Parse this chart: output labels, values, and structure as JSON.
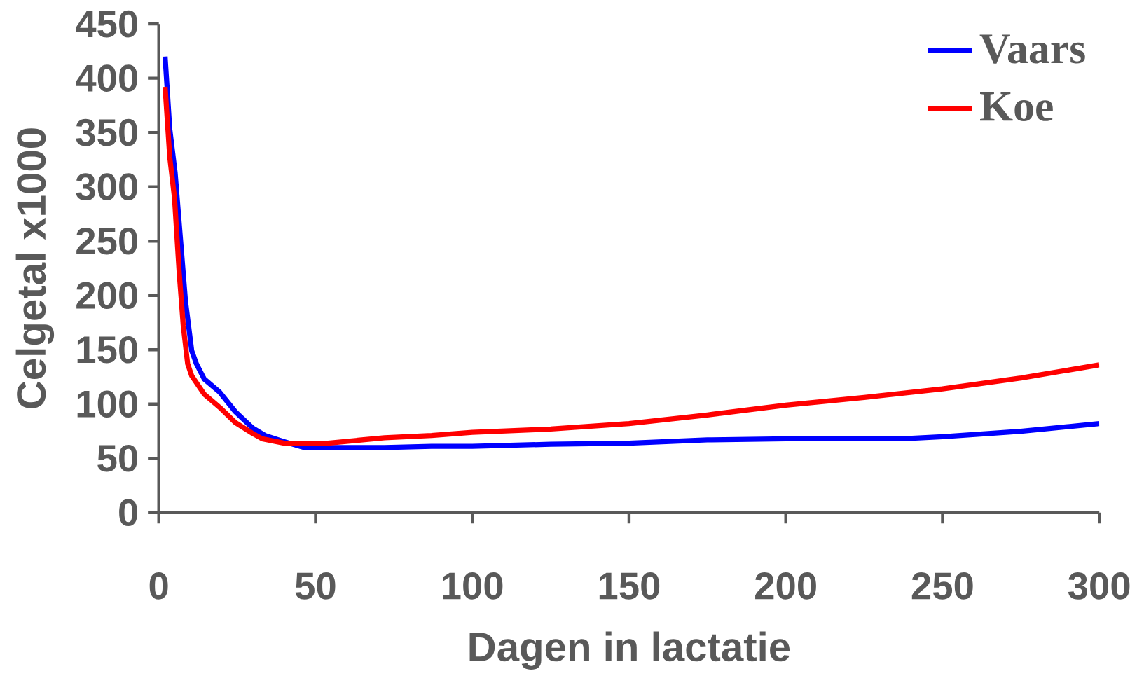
{
  "chart_data": {
    "type": "line",
    "xlabel": "Dagen in lactatie",
    "ylabel": "Celgetal  x1000",
    "xlim": [
      0,
      300
    ],
    "ylim": [
      0,
      450
    ],
    "xticks": [
      0,
      50,
      100,
      150,
      200,
      250,
      300
    ],
    "yticks": [
      0,
      50,
      100,
      150,
      200,
      250,
      300,
      350,
      400,
      450
    ],
    "grid": false,
    "legend": "top right",
    "marker": "none",
    "line_style": "solid",
    "series": [
      {
        "name": "Vaars",
        "color": "#0000ff",
        "x": [
          2,
          3.5,
          5.2,
          8.5,
          9.5,
          10.5,
          12,
          14.5,
          19.4,
          24.4,
          29.9,
          33.9,
          39.8,
          46.3,
          72,
          87,
          100,
          125,
          150,
          175,
          200,
          237,
          250,
          275,
          300
        ],
        "values": [
          420,
          353,
          313,
          195,
          172,
          149,
          137,
          123,
          111,
          93,
          78,
          71,
          65.5,
          60,
          60,
          61,
          61,
          63,
          64,
          67,
          68,
          68,
          70,
          75,
          82
        ]
      },
      {
        "name": "Koe",
        "color": "#ff0000",
        "x": [
          2,
          3.5,
          5,
          6.5,
          7.8,
          9.2,
          10.5,
          14.5,
          19.4,
          24.4,
          29.9,
          33,
          40,
          54,
          72,
          87,
          100,
          125,
          150,
          175,
          200,
          225,
          250,
          275,
          300
        ],
        "values": [
          392,
          327,
          290,
          221,
          172,
          137,
          126,
          109,
          97,
          83,
          73,
          68,
          64,
          64,
          69,
          71,
          74,
          77,
          82,
          90,
          99,
          106,
          114,
          124,
          136
        ]
      }
    ]
  }
}
